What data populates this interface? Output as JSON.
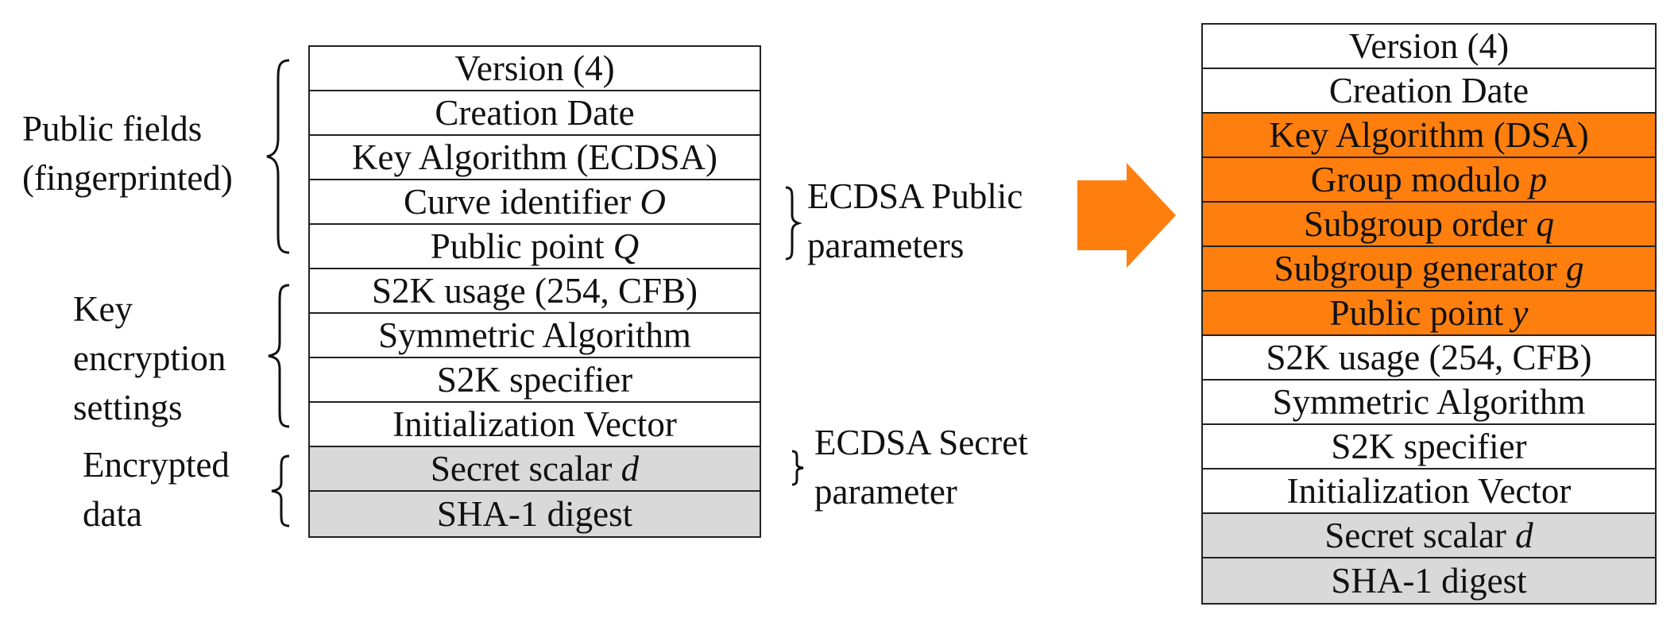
{
  "left_table": {
    "rows": [
      {
        "text": "Version (4)",
        "fill": "white"
      },
      {
        "text": "Creation Date",
        "fill": "white"
      },
      {
        "text": "Key Algorithm (ECDSA)",
        "fill": "white"
      },
      {
        "text": "Curve identifier ",
        "var": "O",
        "fill": "white"
      },
      {
        "text": "Public point ",
        "var": "Q",
        "fill": "white"
      },
      {
        "text": "S2K usage (254, CFB)",
        "fill": "white"
      },
      {
        "text": "Symmetric Algorithm",
        "fill": "white"
      },
      {
        "text": "S2K specifier",
        "fill": "white"
      },
      {
        "text": "Initialization Vector",
        "fill": "white"
      },
      {
        "text": "Secret scalar ",
        "var": "d",
        "fill": "gray"
      },
      {
        "text": "SHA-1 digest",
        "fill": "gray"
      }
    ]
  },
  "right_table": {
    "rows": [
      {
        "text": "Version (4)",
        "fill": "white"
      },
      {
        "text": "Creation Date",
        "fill": "white"
      },
      {
        "text": "Key Algorithm (DSA)",
        "fill": "orange"
      },
      {
        "text": "Group modulo ",
        "var": "p",
        "fill": "orange"
      },
      {
        "text": "Subgroup order ",
        "var": "q",
        "fill": "orange"
      },
      {
        "text": "Subgroup generator ",
        "var": "g",
        "fill": "orange"
      },
      {
        "text": "Public point ",
        "var": "y",
        "fill": "orange"
      },
      {
        "text": "S2K usage (254, CFB)",
        "fill": "white"
      },
      {
        "text": "Symmetric Algorithm",
        "fill": "white"
      },
      {
        "text": "S2K specifier",
        "fill": "white"
      },
      {
        "text": "Initialization Vector",
        "fill": "white"
      },
      {
        "text": "Secret scalar ",
        "var": "d",
        "fill": "gray"
      },
      {
        "text": "SHA-1 digest",
        "fill": "gray"
      }
    ]
  },
  "labels": {
    "public_fields": [
      "Public fields",
      "(fingerprinted)"
    ],
    "key_encryption": [
      "Key",
      "encryption",
      "settings"
    ],
    "encrypted_data": [
      "Encrypted",
      "data"
    ],
    "ecdsa_public": [
      "ECDSA Public",
      "parameters"
    ],
    "ecdsa_secret": [
      "ECDSA Secret",
      "parameter"
    ]
  },
  "colors": {
    "highlight": "#ff7f0e",
    "secret_fill": "#d9d9d9",
    "border": "#222222"
  },
  "icons": {
    "arrow": "right-arrow-icon"
  }
}
